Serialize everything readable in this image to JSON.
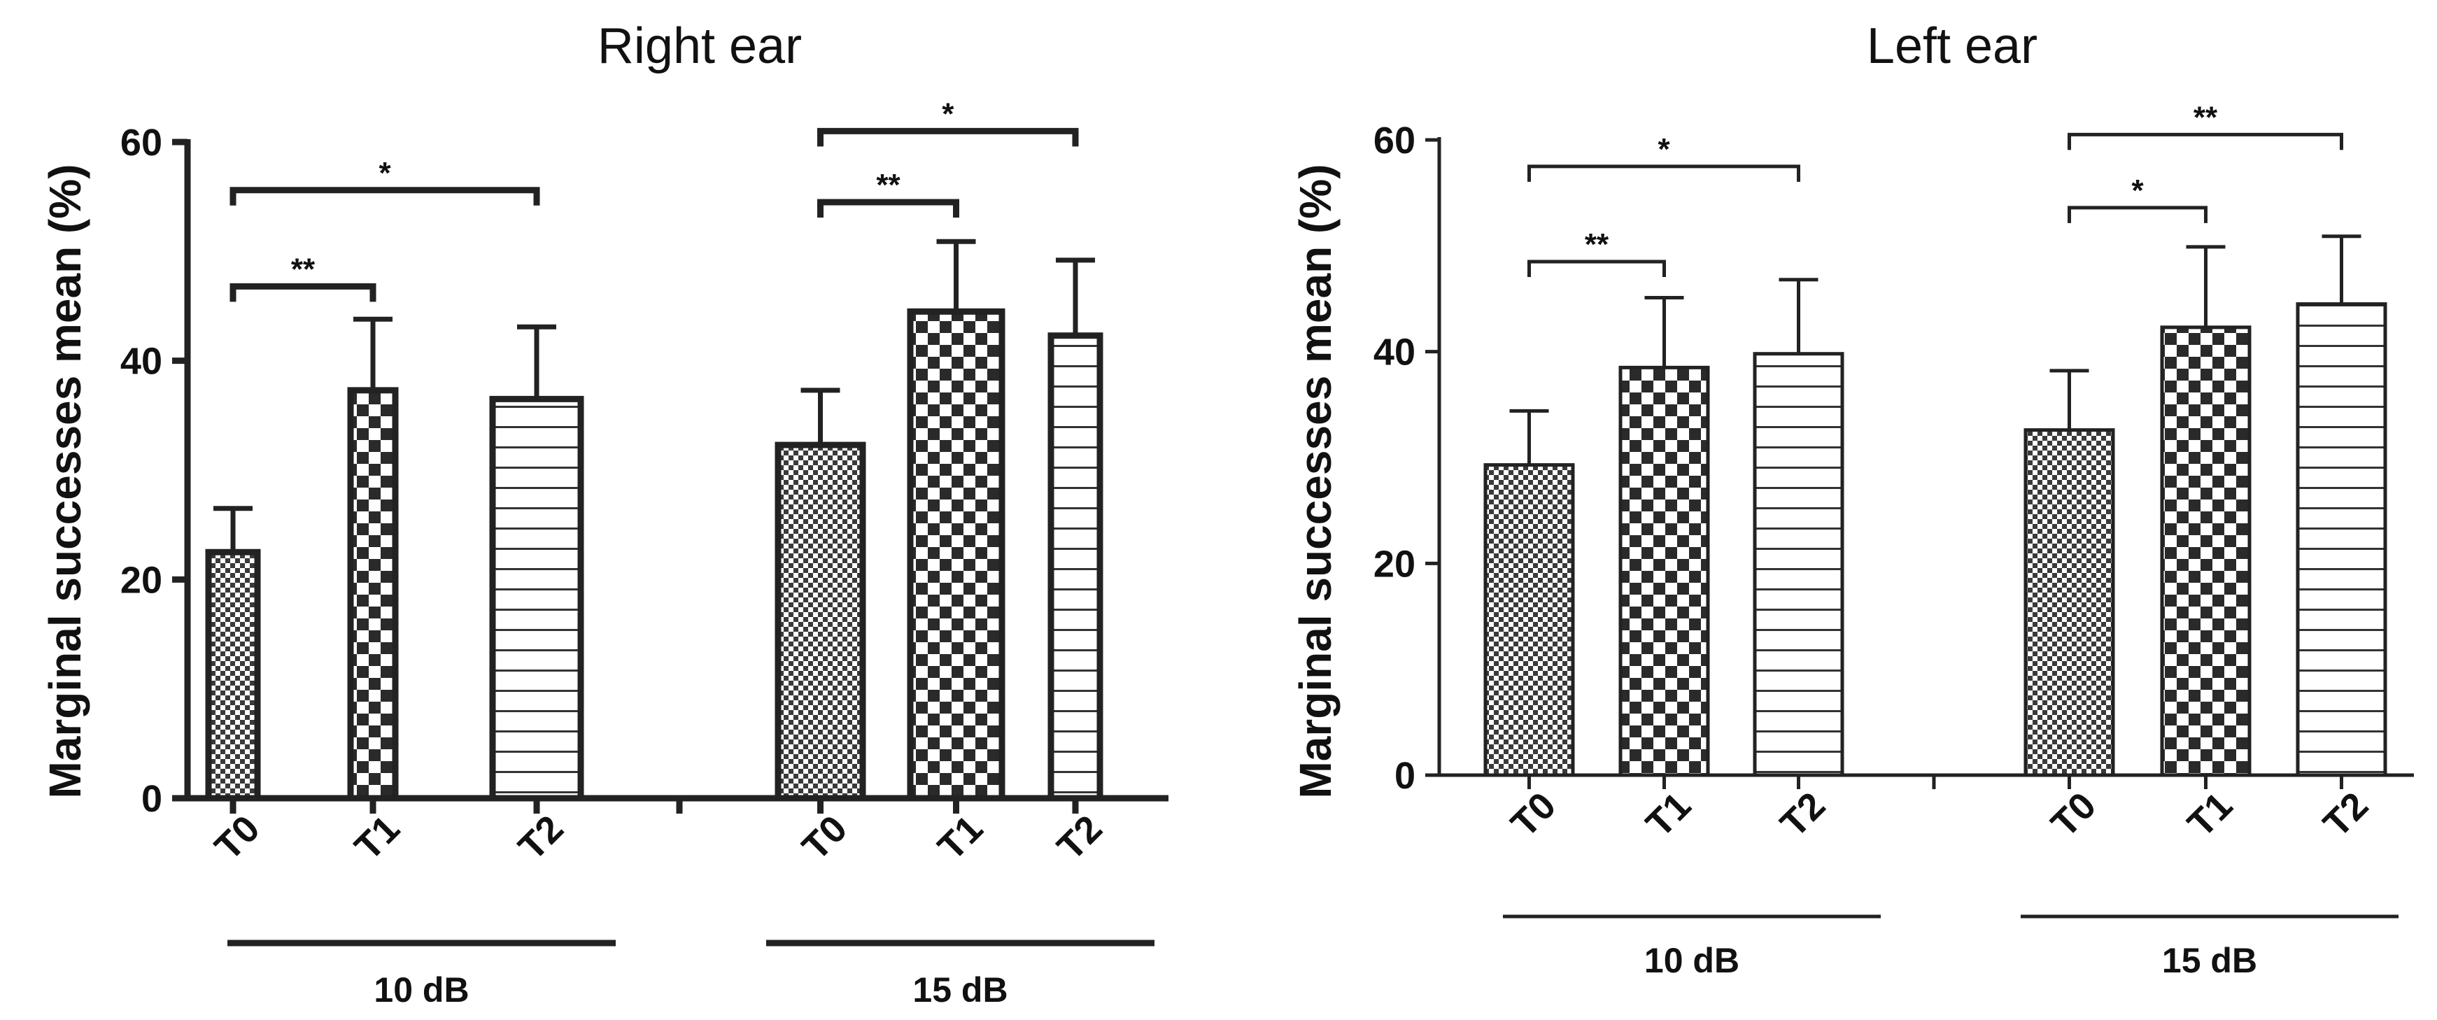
{
  "colors": {
    "ink": "#222222",
    "background": "#ffffff"
  },
  "chart_data": [
    {
      "type": "bar",
      "title": "Right ear",
      "ylabel": "Marginal successes mean (%)",
      "xlabel": "",
      "ylim": [
        0,
        60
      ],
      "yticks": [
        0,
        20,
        40,
        60
      ],
      "grid": false,
      "groups": [
        {
          "label": "10 dB",
          "bars": [
            {
              "category": "T0",
              "value": 22.5,
              "error": 4.0,
              "pattern": "fine-checker"
            },
            {
              "category": "T1",
              "value": 37.3,
              "error": 6.5,
              "pattern": "checker"
            },
            {
              "category": "T2",
              "value": 36.5,
              "error": 6.6,
              "pattern": "horizontal-lines"
            }
          ],
          "comparisons": [
            {
              "from": 0,
              "to": 1,
              "label": "**",
              "y": 46.8
            },
            {
              "from": 0,
              "to": 2,
              "label": "*",
              "y": 55.6
            }
          ]
        },
        {
          "label": "15 dB",
          "bars": [
            {
              "category": "T0",
              "value": 32.3,
              "error": 5.0,
              "pattern": "fine-checker"
            },
            {
              "category": "T1",
              "value": 44.5,
              "error": 6.4,
              "pattern": "checker"
            },
            {
              "category": "T2",
              "value": 42.3,
              "error": 6.9,
              "pattern": "horizontal-lines"
            }
          ],
          "comparisons": [
            {
              "from": 0,
              "to": 1,
              "label": "**",
              "y": 54.5
            },
            {
              "from": 0,
              "to": 2,
              "label": "*",
              "y": 61.0
            }
          ]
        }
      ]
    },
    {
      "type": "bar",
      "title": "Left ear",
      "ylabel": "Marginal successes mean (%)",
      "xlabel": "",
      "ylim": [
        0,
        60
      ],
      "yticks": [
        0,
        20,
        40,
        60
      ],
      "grid": false,
      "groups": [
        {
          "label": "10 dB",
          "bars": [
            {
              "category": "T0",
              "value": 29.3,
              "error": 5.1,
              "pattern": "fine-checker"
            },
            {
              "category": "T1",
              "value": 38.5,
              "error": 6.6,
              "pattern": "checker"
            },
            {
              "category": "T2",
              "value": 39.8,
              "error": 7.0,
              "pattern": "horizontal-lines"
            }
          ],
          "comparisons": [
            {
              "from": 0,
              "to": 1,
              "label": "**",
              "y": 48.5
            },
            {
              "from": 0,
              "to": 2,
              "label": "*",
              "y": 57.5
            }
          ]
        },
        {
          "label": "15 dB",
          "bars": [
            {
              "category": "T0",
              "value": 32.6,
              "error": 5.6,
              "pattern": "fine-checker"
            },
            {
              "category": "T1",
              "value": 42.3,
              "error": 7.6,
              "pattern": "checker"
            },
            {
              "category": "T2",
              "value": 44.5,
              "error": 6.4,
              "pattern": "horizontal-lines"
            }
          ],
          "comparisons": [
            {
              "from": 0,
              "to": 1,
              "label": "*",
              "y": 53.6
            },
            {
              "from": 0,
              "to": 2,
              "label": "**",
              "y": 60.5
            }
          ]
        }
      ]
    }
  ]
}
